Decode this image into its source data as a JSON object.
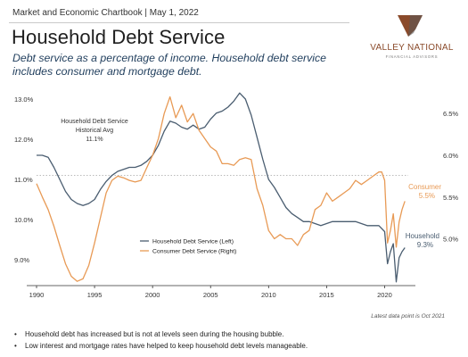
{
  "header": {
    "eyebrow": "Market and Economic Chartbook | May 1, 2022",
    "title": "Household Debt Service",
    "subtitle": "Debt service as a percentage of income. Household debt service includes consumer and mortgage debt."
  },
  "logo": {
    "text": "VALLEY NATIONAL",
    "subtext": "FINANCIAL ADVISORS"
  },
  "colors": {
    "household": "#4a5d70",
    "consumer": "#e89a55",
    "subtitle": "#1f3d5c",
    "reference": "#bbbbbb"
  },
  "chart_data": {
    "type": "line",
    "title": "",
    "xlabel": "",
    "ylabel_left": "",
    "ylabel_right": "",
    "x_ticks": [
      "1990",
      "1995",
      "2000",
      "2005",
      "2010",
      "2015",
      "2020"
    ],
    "xlim": [
      1990,
      2022.5
    ],
    "y_left_ticks": [
      "9.0%",
      "10.0%",
      "11.0%",
      "12.0%",
      "13.0%"
    ],
    "ylim_left": [
      8.4,
      13.2
    ],
    "y_right_ticks": [
      "5.0%",
      "5.5%",
      "6.0%",
      "6.5%"
    ],
    "ylim_right": [
      4.46,
      6.77
    ],
    "grid": false,
    "legend_position": "lower-left",
    "reference_line": {
      "axis": "left",
      "value": 11.1,
      "style": "dotted"
    },
    "annotations": {
      "historical_avg": [
        "Household Debt Service",
        "Historical Avg",
        "11.1%"
      ],
      "consumer_end": {
        "name": "Consumer",
        "value": "5.5%"
      },
      "household_end": {
        "name": "Household",
        "value": "9.3%"
      }
    },
    "series": [
      {
        "name": "Household Debt Service (Left)",
        "axis": "left",
        "points": [
          [
            1990.0,
            11.6
          ],
          [
            1990.5,
            11.6
          ],
          [
            1991.0,
            11.55
          ],
          [
            1991.5,
            11.3
          ],
          [
            1992.0,
            11.0
          ],
          [
            1992.5,
            10.7
          ],
          [
            1993.0,
            10.5
          ],
          [
            1993.5,
            10.4
          ],
          [
            1994.0,
            10.35
          ],
          [
            1994.5,
            10.4
          ],
          [
            1995.0,
            10.5
          ],
          [
            1995.5,
            10.75
          ],
          [
            1996.0,
            10.95
          ],
          [
            1996.5,
            11.1
          ],
          [
            1997.0,
            11.2
          ],
          [
            1997.5,
            11.25
          ],
          [
            1998.0,
            11.3
          ],
          [
            1998.5,
            11.3
          ],
          [
            1999.0,
            11.35
          ],
          [
            1999.5,
            11.45
          ],
          [
            2000.0,
            11.6
          ],
          [
            2000.5,
            11.85
          ],
          [
            2001.0,
            12.2
          ],
          [
            2001.5,
            12.45
          ],
          [
            2002.0,
            12.4
          ],
          [
            2002.5,
            12.3
          ],
          [
            2003.0,
            12.25
          ],
          [
            2003.5,
            12.35
          ],
          [
            2004.0,
            12.25
          ],
          [
            2004.5,
            12.3
          ],
          [
            2005.0,
            12.5
          ],
          [
            2005.5,
            12.65
          ],
          [
            2006.0,
            12.7
          ],
          [
            2006.5,
            12.8
          ],
          [
            2007.0,
            12.95
          ],
          [
            2007.5,
            13.15
          ],
          [
            2008.0,
            13.0
          ],
          [
            2008.5,
            12.6
          ],
          [
            2009.0,
            12.05
          ],
          [
            2009.5,
            11.5
          ],
          [
            2010.0,
            11.0
          ],
          [
            2010.5,
            10.8
          ],
          [
            2011.0,
            10.55
          ],
          [
            2011.5,
            10.3
          ],
          [
            2012.0,
            10.15
          ],
          [
            2012.5,
            10.05
          ],
          [
            2013.0,
            9.95
          ],
          [
            2013.5,
            9.95
          ],
          [
            2014.0,
            9.9
          ],
          [
            2014.5,
            9.85
          ],
          [
            2015.0,
            9.9
          ],
          [
            2015.5,
            9.95
          ],
          [
            2016.0,
            9.95
          ],
          [
            2016.5,
            9.95
          ],
          [
            2017.0,
            9.95
          ],
          [
            2017.5,
            9.95
          ],
          [
            2018.0,
            9.9
          ],
          [
            2018.5,
            9.85
          ],
          [
            2019.0,
            9.85
          ],
          [
            2019.5,
            9.85
          ],
          [
            2020.0,
            9.7
          ],
          [
            2020.25,
            8.9
          ],
          [
            2020.5,
            9.2
          ],
          [
            2020.75,
            9.4
          ],
          [
            2021.0,
            8.45
          ],
          [
            2021.25,
            9.05
          ],
          [
            2021.5,
            9.2
          ],
          [
            2021.75,
            9.3
          ]
        ]
      },
      {
        "name": "Consumer Debt Service (Right)",
        "axis": "right",
        "points": [
          [
            1990.0,
            5.66
          ],
          [
            1990.5,
            5.5
          ],
          [
            1991.0,
            5.35
          ],
          [
            1991.5,
            5.15
          ],
          [
            1992.0,
            4.92
          ],
          [
            1992.5,
            4.7
          ],
          [
            1993.0,
            4.55
          ],
          [
            1993.5,
            4.49
          ],
          [
            1994.0,
            4.52
          ],
          [
            1994.5,
            4.68
          ],
          [
            1995.0,
            4.95
          ],
          [
            1995.5,
            5.25
          ],
          [
            1996.0,
            5.55
          ],
          [
            1996.5,
            5.7
          ],
          [
            1997.0,
            5.75
          ],
          [
            1997.5,
            5.73
          ],
          [
            1998.0,
            5.7
          ],
          [
            1998.5,
            5.68
          ],
          [
            1999.0,
            5.7
          ],
          [
            1999.5,
            5.85
          ],
          [
            2000.0,
            6.0
          ],
          [
            2000.5,
            6.2
          ],
          [
            2001.0,
            6.5
          ],
          [
            2001.5,
            6.7
          ],
          [
            2002.0,
            6.45
          ],
          [
            2002.5,
            6.6
          ],
          [
            2003.0,
            6.4
          ],
          [
            2003.5,
            6.5
          ],
          [
            2004.0,
            6.3
          ],
          [
            2004.5,
            6.2
          ],
          [
            2005.0,
            6.1
          ],
          [
            2005.5,
            6.05
          ],
          [
            2006.0,
            5.9
          ],
          [
            2006.5,
            5.9
          ],
          [
            2007.0,
            5.88
          ],
          [
            2007.5,
            5.95
          ],
          [
            2008.0,
            5.97
          ],
          [
            2008.5,
            5.95
          ],
          [
            2009.0,
            5.6
          ],
          [
            2009.5,
            5.4
          ],
          [
            2010.0,
            5.1
          ],
          [
            2010.5,
            5.0
          ],
          [
            2011.0,
            5.05
          ],
          [
            2011.5,
            5.0
          ],
          [
            2012.0,
            5.0
          ],
          [
            2012.5,
            4.92
          ],
          [
            2013.0,
            5.05
          ],
          [
            2013.5,
            5.1
          ],
          [
            2014.0,
            5.35
          ],
          [
            2014.5,
            5.4
          ],
          [
            2015.0,
            5.55
          ],
          [
            2015.5,
            5.45
          ],
          [
            2016.0,
            5.5
          ],
          [
            2016.5,
            5.55
          ],
          [
            2017.0,
            5.6
          ],
          [
            2017.5,
            5.7
          ],
          [
            2018.0,
            5.65
          ],
          [
            2018.5,
            5.7
          ],
          [
            2019.0,
            5.75
          ],
          [
            2019.5,
            5.8
          ],
          [
            2019.75,
            5.8
          ],
          [
            2020.0,
            5.7
          ],
          [
            2020.25,
            4.95
          ],
          [
            2020.5,
            5.1
          ],
          [
            2020.75,
            5.3
          ],
          [
            2021.0,
            4.9
          ],
          [
            2021.25,
            5.2
          ],
          [
            2021.5,
            5.35
          ],
          [
            2021.75,
            5.45
          ]
        ]
      }
    ]
  },
  "footnote": "Latest data point is Oct 2021",
  "bullets": [
    "Household debt has increased but is not at levels seen during the housing bubble.",
    "Low interest and mortgage rates have helped to keep household debt levels manageable."
  ]
}
